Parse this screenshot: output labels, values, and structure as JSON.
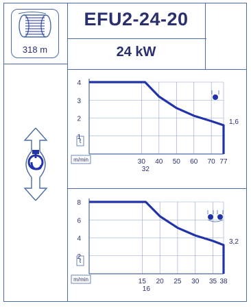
{
  "header": {
    "model": "EFU2-24-20",
    "power": "24 kW"
  },
  "reel": {
    "length_label": "318 m",
    "icon": "cable-reel-icon"
  },
  "hook": {
    "icon": "hook-up-down-icon"
  },
  "charts": [
    {
      "type": "line",
      "reeving_icon": "single-fall-icon",
      "y_ticks": [
        "4",
        "3",
        "2",
        "1"
      ],
      "x_ticks": [
        "30",
        "40",
        "50",
        "60",
        "70",
        "77"
      ],
      "x_extra_tick": "32",
      "x_unit": "m/min",
      "y_unit": "t",
      "end_label": "1,6",
      "chart_data": {
        "type": "line",
        "x": [
          0,
          32,
          40,
          50,
          60,
          70,
          77,
          77
        ],
        "y": [
          4,
          4,
          3.2,
          2.56,
          2.13,
          1.83,
          1.6,
          0
        ],
        "xlim": [
          0,
          77
        ],
        "ylim": [
          0,
          4
        ]
      }
    },
    {
      "type": "line",
      "reeving_icon": "double-fall-icon",
      "y_ticks": [
        "8",
        "6",
        "4",
        "2"
      ],
      "x_ticks": [
        "15",
        "20",
        "25",
        "30",
        "35",
        "38"
      ],
      "x_extra_tick": "16",
      "x_unit": "m/min",
      "y_unit": "t",
      "end_label": "3,2",
      "chart_data": {
        "type": "line",
        "x": [
          0,
          16,
          20,
          25,
          30,
          35,
          38,
          38
        ],
        "y": [
          8,
          8,
          6.4,
          5.12,
          4.27,
          3.66,
          3.2,
          0
        ],
        "xlim": [
          0,
          38
        ],
        "ylim": [
          0,
          8
        ]
      }
    }
  ],
  "colors": {
    "line": "#4a6aa8",
    "curve": "#2233aa",
    "text": "#2a2f6e",
    "grid": "#8fa4cf"
  }
}
